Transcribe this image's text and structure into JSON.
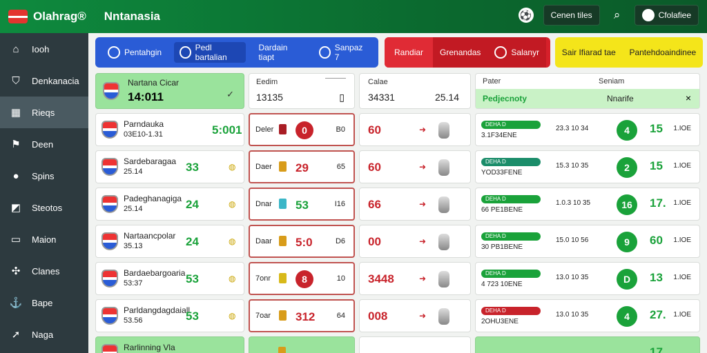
{
  "header": {
    "app_name": "Olahrag®",
    "brand": "Nntanasia",
    "btn1": "Cenen tiles",
    "btn2": "Cfolafiee"
  },
  "sidebar": [
    {
      "label": "Iooh",
      "icon": "home-icon"
    },
    {
      "label": "Denkanacia",
      "icon": "shield-icon"
    },
    {
      "label": "Rieqs",
      "icon": "grid-icon"
    },
    {
      "label": "Deen",
      "icon": "flag-icon"
    },
    {
      "label": "Spins",
      "icon": "ball-icon"
    },
    {
      "label": "Steotos",
      "icon": "chart-icon"
    },
    {
      "label": "Maion",
      "icon": "monitor-icon"
    },
    {
      "label": "Clanes",
      "icon": "soccer-icon"
    },
    {
      "label": "Bape",
      "icon": "anchor-icon"
    },
    {
      "label": "Naga",
      "icon": "rocket-icon"
    }
  ],
  "tabs": {
    "t1": "Pentahgin",
    "t2": "Pedl bartalian",
    "t3": "Dardain tiapt",
    "t4": "Sanpaz 7",
    "t5": "Randiar",
    "t6": "Grenandas",
    "t7": "Salanyr",
    "t8": "Sair Ifiarad tae",
    "t9": "Pantehdoaindinee"
  },
  "featured": {
    "title": "Nartana Cicar",
    "value": "14:011"
  },
  "col2": {
    "head": "Eedim",
    "value": "13135"
  },
  "col3": {
    "head": "Calae",
    "value": "34331",
    "value2": "25.14"
  },
  "col4": {
    "head1": "Pater",
    "head2": "Seniam",
    "sub": "Pedjecnoty",
    "sub2": "Nnarife"
  },
  "rows": [
    {
      "name": "Parndauka",
      "sub": "03E10-1.31",
      "score": "5:001",
      "col2label": "Deler",
      "col2val": "0",
      "col2tail": "B0",
      "col3": "60",
      "bar": "DEHA D",
      "bartxt": "3.1F34ENE",
      "mid": "23.3 10 34",
      "circle": "4",
      "big": "15",
      "tail": "1.IOE"
    },
    {
      "name": "Sardebaragaa",
      "sub": "25.14",
      "score": "33",
      "col2label": "Daer",
      "col2val": "29",
      "col2tail": "65",
      "col3": "60",
      "bar": "DEHA D",
      "bartxt": "YOD33FENE",
      "mid": "15.3 10 35",
      "circle": "2",
      "big": "15",
      "tail": "1.IOE"
    },
    {
      "name": "Padeghanagiga",
      "sub": "25.14",
      "score": "24",
      "col2label": "Dnar",
      "col2val": "53",
      "col2tail": "I16",
      "col3": "66",
      "bar": "DEHA D",
      "bartxt": "66 PE1BENE",
      "mid": "1.0.3 10 35",
      "circle": "16",
      "big": "17.",
      "tail": "1.IOE"
    },
    {
      "name": "Nartaancpolar",
      "sub": "35.13",
      "score": "24",
      "col2label": "Daar",
      "col2val": "5:0",
      "col2tail": "D6",
      "col3": "00",
      "bar": "DEHA D",
      "bartxt": "30 PB1BENE",
      "mid": "15.0 10 56",
      "circle": "9",
      "big": "60",
      "tail": "1.IOE"
    },
    {
      "name": "Bardaebargoaria",
      "sub": "53:37",
      "score": "53",
      "col2label": "7onr",
      "col2val": "8",
      "col2tail": "10",
      "col3": "3448",
      "bar": "DEHA D",
      "bartxt": "4 723 10ENE",
      "mid": "13.0 10 35",
      "circle": "D",
      "big": "13",
      "tail": "1.IOE"
    },
    {
      "name": "Parldangdagdaiall",
      "sub": "53.56",
      "score": "53",
      "col2label": "7oar",
      "col2val": "312",
      "col2tail": "64",
      "col3": "008",
      "bar": "DEHA D",
      "bartxt": "2OHU3ENE",
      "mid": "13.0 10 35",
      "circle": "4",
      "big": "27.",
      "tail": "1.IOE"
    },
    {
      "name": "Rarlinning Vla",
      "sub": "",
      "score": "",
      "col2label": "",
      "col2val": "",
      "col2tail": "",
      "col3": "",
      "bar": "",
      "bartxt": "",
      "mid": "",
      "circle": "",
      "big": "17",
      "tail": ""
    }
  ]
}
